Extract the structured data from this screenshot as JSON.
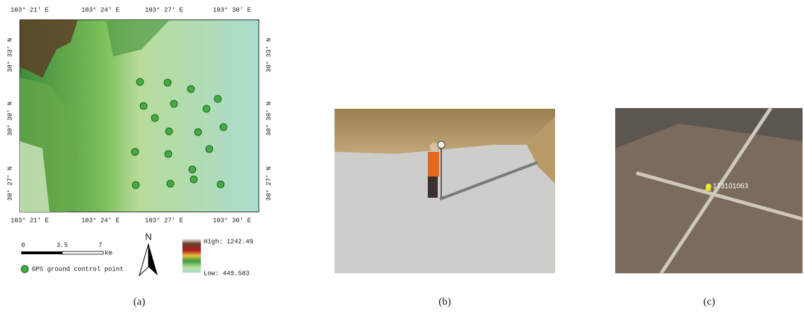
{
  "panels": [
    {
      "caption": "(a)",
      "map": {
        "lon_labels": [
          "103° 21′ E",
          "103° 24′ E",
          "103° 27′ E",
          "103° 30′ E"
        ],
        "lat_labels": [
          "30° 33′ N",
          "30° 30′ N",
          "30° 27′ N"
        ],
        "scale_labels": [
          "0",
          "3.5",
          "7",
          "km"
        ],
        "north": "N",
        "legend": "GPS ground control point",
        "elevation_high": "High: 1242.49",
        "elevation_low": "Low: 449.583"
      }
    },
    {
      "caption": "(b)"
    },
    {
      "caption": "(c)",
      "pin_label": "173101063"
    }
  ]
}
